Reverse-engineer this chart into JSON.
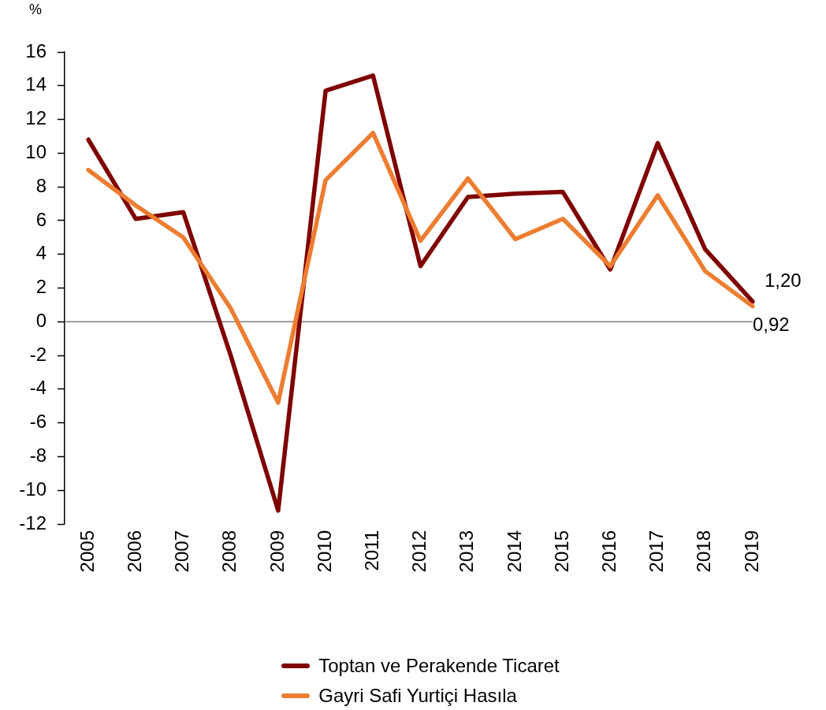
{
  "chart_data": {
    "type": "line",
    "ylabel": "%",
    "categories": [
      "2005",
      "2006",
      "2007",
      "2008",
      "2009",
      "2010",
      "2011",
      "2012",
      "2013",
      "2014",
      "2015",
      "2016",
      "2017",
      "2018",
      "2019"
    ],
    "ylim": [
      -12,
      16
    ],
    "yticks": [
      -12,
      -10,
      -8,
      -6,
      -4,
      -2,
      0,
      2,
      4,
      6,
      8,
      10,
      12,
      14,
      16
    ],
    "grid": false,
    "legend": "bottom",
    "marker": "none",
    "line_style": "solid",
    "ref_lines": [
      {
        "axis": "y",
        "value": 0,
        "color": "#808080"
      }
    ],
    "series": [
      {
        "name": "Toptan ve Perakende Ticaret",
        "color": "#7f0000",
        "values": [
          10.8,
          6.1,
          6.5,
          -2.0,
          -11.2,
          13.7,
          14.6,
          3.3,
          7.4,
          7.6,
          7.7,
          3.1,
          10.6,
          4.3,
          1.2
        ],
        "value_labels": [
          null,
          null,
          null,
          null,
          null,
          null,
          null,
          null,
          null,
          null,
          null,
          null,
          null,
          null,
          "1,20"
        ]
      },
      {
        "name": "Gayri Safi Yurtiçi Hasıla",
        "color": "#ed7d31",
        "values": [
          9.0,
          6.9,
          5.0,
          0.8,
          -4.8,
          8.4,
          11.2,
          4.8,
          8.5,
          4.9,
          6.1,
          3.3,
          7.5,
          3.0,
          0.92
        ],
        "value_labels": [
          null,
          null,
          null,
          null,
          null,
          null,
          null,
          null,
          null,
          null,
          null,
          null,
          null,
          null,
          "0,92"
        ]
      }
    ]
  }
}
